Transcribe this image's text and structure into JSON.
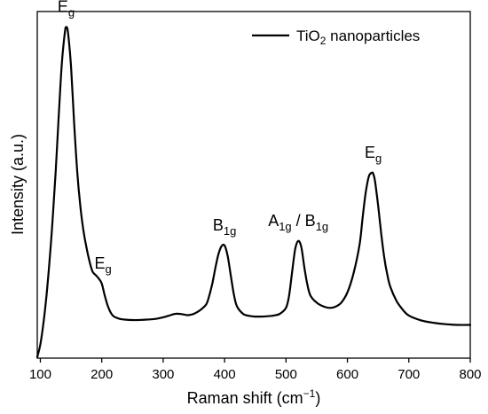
{
  "chart_data": {
    "type": "line",
    "title": "",
    "xlabel_main": "Raman shift (cm",
    "xlabel_sup": "−1",
    "xlabel_tail": ")",
    "ylabel": "Intensity (a.u.)",
    "xlim": [
      95,
      800
    ],
    "ylim": [
      0,
      100
    ],
    "y_ticks_shown": false,
    "grid": false,
    "legend_position": "top-right",
    "x_ticks": [
      100,
      200,
      300,
      400,
      500,
      600,
      700,
      800
    ],
    "series": [
      {
        "name_main": "TiO",
        "name_sub": "2",
        "name_tail": " nanoparticles",
        "color": "#000000",
        "x": [
          95,
          100,
          105,
          110,
          115,
          120,
          125,
          130,
          135,
          140,
          142,
          145,
          150,
          155,
          160,
          165,
          170,
          175,
          180,
          185,
          190,
          195,
          200,
          205,
          210,
          215,
          220,
          230,
          240,
          250,
          260,
          270,
          280,
          290,
          300,
          310,
          320,
          330,
          340,
          350,
          360,
          370,
          375,
          380,
          385,
          390,
          395,
          400,
          405,
          410,
          415,
          420,
          430,
          440,
          450,
          460,
          470,
          480,
          490,
          500,
          505,
          510,
          515,
          520,
          525,
          530,
          535,
          540,
          550,
          560,
          570,
          580,
          590,
          600,
          610,
          620,
          625,
          630,
          635,
          640,
          642,
          645,
          650,
          655,
          660,
          665,
          670,
          680,
          690,
          700,
          720,
          740,
          760,
          780,
          800
        ],
        "y": [
          0.3,
          4,
          10,
          18,
          28,
          40,
          54,
          70,
          85,
          94,
          95.5,
          94,
          84,
          68,
          54,
          44,
          37,
          32,
          28,
          25,
          24,
          23,
          21.5,
          18,
          15,
          13,
          12,
          11.3,
          11.1,
          11,
          11,
          11.1,
          11.2,
          11.4,
          11.8,
          12.3,
          12.8,
          12.7,
          12.4,
          12.8,
          13.8,
          15.5,
          18,
          21.5,
          26,
          30,
          32.3,
          32.5,
          29.5,
          24,
          18.5,
          15,
          12.8,
          12.2,
          12,
          12,
          12.1,
          12.3,
          12.8,
          14.5,
          18,
          25,
          31.5,
          33.8,
          32,
          26,
          21,
          18,
          16,
          15,
          14.5,
          14.8,
          16,
          19,
          24.5,
          33,
          41,
          48,
          52.5,
          53.5,
          53.2,
          51,
          44,
          36,
          29,
          24,
          20.5,
          16.5,
          14,
          12.3,
          10.9,
          10.2,
          9.8,
          9.6,
          9.6
        ]
      }
    ],
    "annotations": [
      {
        "x": 142,
        "y": 95.5,
        "main": "E",
        "sub": "g"
      },
      {
        "x": 202,
        "y": 21.5,
        "main": "E",
        "sub": "g"
      },
      {
        "x": 400,
        "y": 32.5,
        "main": "B",
        "sub": "1g"
      },
      {
        "x": 520,
        "y": 33.8,
        "main": "A",
        "sub": "1g",
        "mid": " / B",
        "sub2": "1g"
      },
      {
        "x": 642,
        "y": 53.5,
        "main": "E",
        "sub": "g"
      }
    ]
  }
}
